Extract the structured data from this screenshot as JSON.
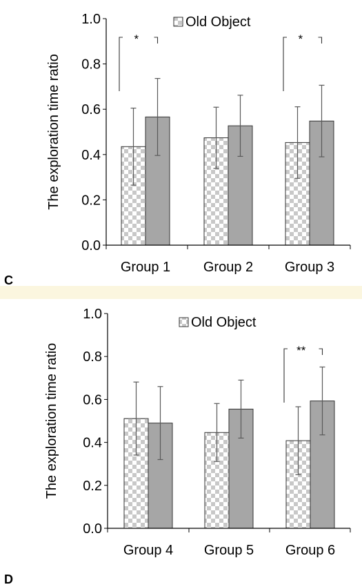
{
  "chart_data": [
    {
      "type": "bar",
      "panel_label": "C",
      "ylabel": "The exploration time ratio",
      "ylim": [
        0,
        1.0
      ],
      "y_ticks": [
        "0.0",
        "0.2",
        "0.4",
        "0.6",
        "0.8",
        "1.0"
      ],
      "categories": [
        "Group 1",
        "Group 2",
        "Group 3"
      ],
      "legend": "Old Object",
      "series": [
        {
          "pattern": "checkered",
          "values": [
            0.435,
            0.474,
            0.453
          ],
          "errors": [
            0.17,
            0.135,
            0.158
          ]
        },
        {
          "name": "Old Object",
          "pattern": "solid-gray",
          "values": [
            0.566,
            0.527,
            0.548
          ],
          "errors": [
            0.17,
            0.135,
            0.158
          ]
        }
      ],
      "annotations": [
        {
          "category": 0,
          "text": "*"
        },
        {
          "category": 2,
          "text": "*"
        }
      ]
    },
    {
      "type": "bar",
      "panel_label": "D",
      "ylabel": "The exploration time ratio",
      "ylim": [
        0,
        1.0
      ],
      "y_ticks": [
        "0.0",
        "0.2",
        "0.4",
        "0.6",
        "0.8",
        "1.0"
      ],
      "categories": [
        "Group 4",
        "Group 5",
        "Group 6"
      ],
      "legend": "Old Object",
      "series": [
        {
          "pattern": "checkered",
          "values": [
            0.511,
            0.446,
            0.408
          ],
          "errors": [
            0.17,
            0.135,
            0.158
          ]
        },
        {
          "name": "Old Object",
          "pattern": "solid-gray",
          "values": [
            0.49,
            0.555,
            0.593
          ],
          "errors": [
            0.17,
            0.135,
            0.158
          ]
        }
      ],
      "annotations": [
        {
          "category": 2,
          "text": "**"
        }
      ]
    }
  ],
  "colors": {
    "page_background": "#fbf6df",
    "solid_bar": "#a6a6a6",
    "checker_light": "#ffffff",
    "checker_dark": "#c8c8c8",
    "error_bar": "#595959",
    "axis": "#000000"
  }
}
